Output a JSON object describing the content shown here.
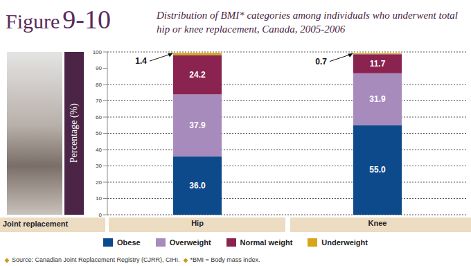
{
  "chart_data": {
    "type": "bar",
    "figure_label": "Figure 9-10",
    "title": "Distribution of BMI* categories among individuals who underwent total hip or knee replacement, Canada, 2005-2006",
    "x_label": "Joint replacement",
    "y_label": "Percentage (%)",
    "categories": [
      "Hip",
      "Knee"
    ],
    "series": [
      {
        "name": "Obese",
        "color": "#0d4a8c",
        "values": [
          36.0,
          55.0
        ],
        "value_labels": [
          "36.0",
          "55.0"
        ]
      },
      {
        "name": "Overweight",
        "color": "#a88bbd",
        "values": [
          37.9,
          31.9
        ]
      },
      {
        "name": "Normal weight",
        "color": "#8a2350",
        "values": [
          24.2,
          11.7
        ]
      },
      {
        "name": "Underweight",
        "color": "#d6a519",
        "values": [
          1.4,
          0.7
        ]
      }
    ],
    "stacked": true,
    "data_labels": true,
    "ylim": [
      0,
      100
    ],
    "yticks": [
      0,
      10,
      20,
      30,
      40,
      50,
      60,
      70,
      80,
      90,
      100
    ],
    "grid": true,
    "legend": "bottom",
    "source": "Source: Canadian Joint Replacement Registry (CJRR), CIHI.",
    "note": "*BMI = Body mass index."
  }
}
